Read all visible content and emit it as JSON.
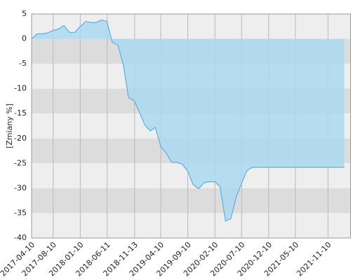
{
  "chart_data": {
    "type": "area",
    "y_label": "[Zmiany %]",
    "x": [
      "2017-04-10",
      "2017-05-10",
      "2017-06-10",
      "2017-07-10",
      "2017-08-10",
      "2017-09-10",
      "2017-10-10",
      "2017-11-10",
      "2017-12-10",
      "2018-01-10",
      "2018-02-10",
      "2018-03-10",
      "2018-04-10",
      "2018-05-10",
      "2018-06-10",
      "2018-07-10",
      "2018-08-10",
      "2018-09-10",
      "2018-10-10",
      "2018-11-10",
      "2018-12-10",
      "2019-01-10",
      "2019-02-10",
      "2019-03-10",
      "2019-04-10",
      "2019-05-10",
      "2019-06-10",
      "2019-07-10",
      "2019-08-10",
      "2019-09-10",
      "2019-10-10",
      "2019-11-10",
      "2019-12-10",
      "2020-01-10",
      "2020-02-10",
      "2020-03-10",
      "2020-04-10",
      "2020-05-10",
      "2020-06-10",
      "2020-07-10",
      "2020-08-10",
      "2020-09-10",
      "2020-10-10",
      "2020-11-10",
      "2020-12-10",
      "2021-01-10",
      "2021-02-10",
      "2021-03-10",
      "2021-04-10",
      "2021-05-10",
      "2021-06-10",
      "2021-07-10",
      "2021-08-10",
      "2021-09-10",
      "2021-10-10",
      "2021-11-10",
      "2021-12-10",
      "2022-01-10",
      "2022-02-10"
    ],
    "series": [
      {
        "color": "#5aafe6",
        "fill": "#aad8ef",
        "values": [
          0,
          1.0,
          1.0,
          1.2,
          1.7,
          2.0,
          2.7,
          1.3,
          1.3,
          2.5,
          3.5,
          3.3,
          3.3,
          3.8,
          3.5,
          -0.7,
          -1.2,
          -5.2,
          -11.8,
          -12.4,
          -14.7,
          -17.3,
          -18.5,
          -17.8,
          -21.6,
          -22.9,
          -24.8,
          -24.8,
          -25.2,
          -26.6,
          -29.3,
          -30.1,
          -28.9,
          -28.7,
          -28.7,
          -29.7,
          -36.6,
          -36.1,
          -31.7,
          -29.0,
          -26.4,
          -25.8,
          -25.8,
          -25.8,
          -25.8,
          -25.8,
          -25.8,
          -25.8,
          -25.8,
          -25.8,
          -25.8,
          -25.8,
          -25.8,
          -25.8,
          -25.8,
          -25.8,
          -25.8,
          -25.8,
          -25.8
        ]
      }
    ],
    "xlim": [
      "2017-04-10",
      "2022-03-20"
    ],
    "xticks": [
      "2017-04-10",
      "2017-08-10",
      "2018-01-10",
      "2018-06-11",
      "2018-11-13",
      "2019-04-10",
      "2019-09-10",
      "2020-02-10",
      "2020-07-10",
      "2020-12-10",
      "2021-05-10",
      "2021-11-10"
    ],
    "ylim": [
      -40,
      5
    ],
    "yticks": [
      5,
      0,
      -5,
      -10,
      -15,
      -20,
      -25,
      -30,
      -35,
      -40
    ],
    "band_colors": [
      "#eeeeee",
      "#dcdcdc"
    ],
    "grid_color": "#b8b8b8"
  }
}
